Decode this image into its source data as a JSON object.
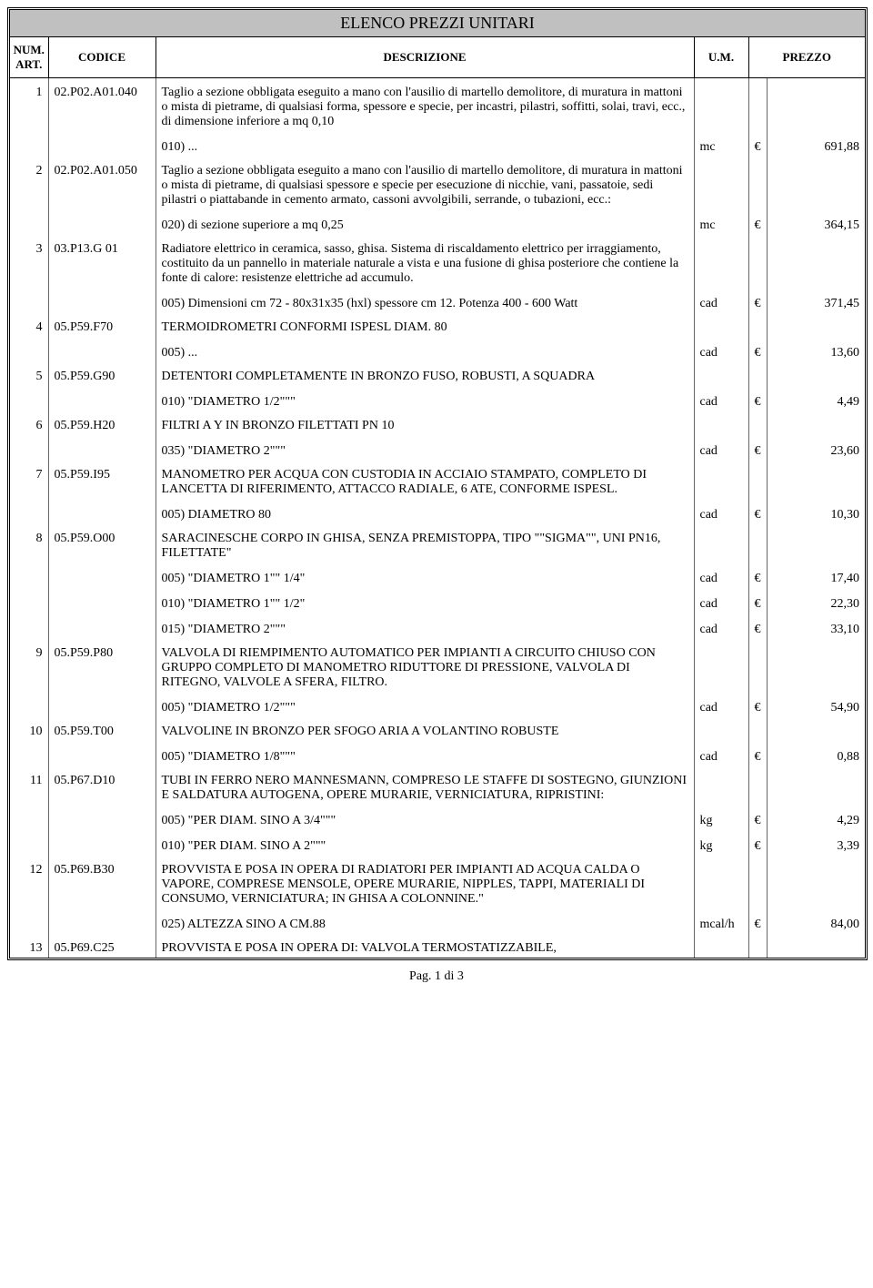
{
  "title": "ELENCO PREZZI UNITARI",
  "pager": "Pag. 1 di 3",
  "headers": {
    "num": "NUM. ART.",
    "code": "CODICE",
    "desc": "DESCRIZIONE",
    "um": "U.M.",
    "price": "PREZZO"
  },
  "currency": "€",
  "articles": [
    {
      "num": "1",
      "code": "02.P02.A01.040",
      "desc": "Taglio a sezione obbligata eseguito a mano con l'ausilio di martello demolitore, di muratura in mattoni o mista di pietrame, di qualsiasi forma, spessore e specie, per incastri, pilastri, soffitti, solai, travi, ecc., di dimensione inferiore a mq 0,10",
      "subs": [
        {
          "label": "010) ...",
          "um": "mc",
          "price": "691,88"
        }
      ]
    },
    {
      "num": "2",
      "code": "02.P02.A01.050",
      "desc": "Taglio a sezione obbligata eseguito a mano con l'ausilio di martello demolitore, di muratura in mattoni o mista di pietrame, di qualsiasi spessore e specie per esecuzione di nicchie, vani, passatoie, sedi pilastri o piattabande in cemento armato, cassoni avvolgibili, serrande, o tubazioni, ecc.:",
      "subs": [
        {
          "label": "020) di sezione superiore a mq 0,25",
          "um": "mc",
          "price": "364,15"
        }
      ]
    },
    {
      "num": "3",
      "code": "03.P13.G 01",
      "desc": "Radiatore elettrico in ceramica, sasso, ghisa. Sistema di riscaldamento elettrico per irraggiamento, costituito da un pannello in materiale naturale a vista e una fusione di ghisa posteriore che contiene la fonte di calore: resistenze elettriche ad accumulo.",
      "subs": [
        {
          "label": "005) Dimensioni cm 72 - 80x31x35 (hxl) spessore cm 12. Potenza 400 - 600 Watt",
          "um": "cad",
          "price": "371,45"
        }
      ]
    },
    {
      "num": "4",
      "code": "05.P59.F70",
      "desc": "TERMOIDROMETRI CONFORMI ISPESL DIAM. 80",
      "subs": [
        {
          "label": "005) ...",
          "um": "cad",
          "price": "13,60"
        }
      ]
    },
    {
      "num": "5",
      "code": "05.P59.G90",
      "desc": "DETENTORI COMPLETAMENTE IN BRONZO FUSO, ROBUSTI, A SQUADRA",
      "subs": [
        {
          "label": "010) \"DIAMETRO 1/2\"\"\"",
          "um": "cad",
          "price": "4,49"
        }
      ]
    },
    {
      "num": "6",
      "code": "05.P59.H20",
      "desc": "FILTRI A Y IN BRONZO FILETTATI PN 10",
      "subs": [
        {
          "label": "035) \"DIAMETRO 2\"\"\"",
          "um": "cad",
          "price": "23,60"
        }
      ]
    },
    {
      "num": "7",
      "code": "05.P59.I95",
      "desc": "MANOMETRO PER ACQUA CON CUSTODIA IN ACCIAIO STAMPATO, COMPLETO DI LANCETTA DI RIFERIMENTO, ATTACCO RADIALE, 6 ATE, CONFORME ISPESL.",
      "subs": [
        {
          "label": "005) DIAMETRO 80",
          "um": "cad",
          "price": "10,30"
        }
      ]
    },
    {
      "num": "8",
      "code": "05.P59.O00",
      "desc": "SARACINESCHE CORPO IN GHISA, SENZA PREMISTOPPA, TIPO \"\"SIGMA\"\", UNI PN16, FILETTATE\"",
      "subs": [
        {
          "label": "005) \"DIAMETRO 1\"\" 1/4\"",
          "um": "cad",
          "price": "17,40"
        },
        {
          "label": "010) \"DIAMETRO 1\"\" 1/2\"",
          "um": "cad",
          "price": "22,30"
        },
        {
          "label": "015) \"DIAMETRO 2\"\"\"",
          "um": "cad",
          "price": "33,10"
        }
      ]
    },
    {
      "num": "9",
      "code": "05.P59.P80",
      "desc": "VALVOLA DI RIEMPIMENTO AUTOMATICO PER IMPIANTI A CIRCUITO CHIUSO CON GRUPPO COMPLETO DI MANOMETRO RIDUTTORE DI PRESSIONE, VALVOLA DI RITEGNO, VALVOLE A SFERA, FILTRO.",
      "subs": [
        {
          "label": "005) \"DIAMETRO 1/2\"\"\"",
          "um": "cad",
          "price": "54,90"
        }
      ]
    },
    {
      "num": "10",
      "code": "05.P59.T00",
      "desc": "VALVOLINE IN BRONZO PER SFOGO ARIA A VOLANTINO ROBUSTE",
      "subs": [
        {
          "label": "005) \"DIAMETRO 1/8\"\"\"",
          "um": "cad",
          "price": "0,88"
        }
      ]
    },
    {
      "num": "11",
      "code": "05.P67.D10",
      "desc": "TUBI IN FERRO NERO MANNESMANN, COMPRESO LE STAFFE DI SOSTEGNO, GIUNZIONI E SALDATURA AUTOGENA, OPERE MURARIE, VERNICIATURA, RIPRISTINI:",
      "subs": [
        {
          "label": "005) \"PER DIAM. SINO A 3/4\"\"\"",
          "um": "kg",
          "price": "4,29"
        },
        {
          "label": "010) \"PER DIAM. SINO A 2\"\"\"",
          "um": "kg",
          "price": "3,39"
        }
      ]
    },
    {
      "num": "12",
      "code": "05.P69.B30",
      "desc": "PROVVISTA E POSA IN OPERA DI RADIATORI PER IMPIANTI AD ACQUA CALDA O VAPORE, COMPRESE MENSOLE, OPERE MURARIE, NIPPLES, TAPPI, MATERIALI DI CONSUMO, VERNICIATURA; IN GHISA A COLONNINE.\"",
      "subs": [
        {
          "label": "025) ALTEZZA SINO A CM.88",
          "um": "mcal/h",
          "price": "84,00"
        }
      ]
    },
    {
      "num": "13",
      "code": "05.P69.C25",
      "desc": "PROVVISTA E POSA IN OPERA DI: VALVOLA TERMOSTATIZZABILE,",
      "subs": []
    }
  ]
}
